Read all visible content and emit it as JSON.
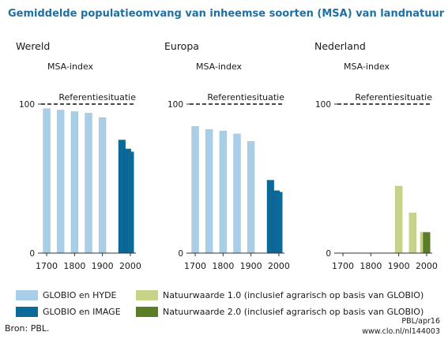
{
  "title": "Gemiddelde populatieomvang van inheemse soorten (MSA) van landnatuur",
  "colors": {
    "globio_hyde": "#a9cfe8",
    "globio_image": "#0b6a99",
    "natuurwaarde_1": "#c8d38a",
    "natuurwaarde_2": "#5b7d26"
  },
  "chart_data": [
    {
      "type": "bar",
      "panel_title": "Wereld",
      "ylabel": "MSA-index",
      "reference_label": "Referentiesituatie",
      "reference_value": 100,
      "ylim": [
        0,
        100
      ],
      "yticks": [
        0,
        100
      ],
      "xticks": [
        "1700",
        "1800",
        "1900",
        "2000"
      ],
      "series": [
        {
          "name": "GLOBIO en HYDE",
          "color_key": "globio_hyde",
          "x": [
            1700,
            1750,
            1800,
            1850,
            1900
          ],
          "values": [
            97,
            96,
            95,
            94,
            91
          ]
        },
        {
          "name": "GLOBIO en IMAGE",
          "color_key": "globio_image",
          "x": [
            1970,
            1990,
            2000
          ],
          "values": [
            76,
            70,
            68
          ]
        }
      ]
    },
    {
      "type": "bar",
      "panel_title": "Europa",
      "ylabel": "MSA-index",
      "reference_label": "Referentiesituatie",
      "reference_value": 100,
      "ylim": [
        0,
        100
      ],
      "yticks": [
        0,
        100
      ],
      "xticks": [
        "1700",
        "1800",
        "1900",
        "2000"
      ],
      "series": [
        {
          "name": "GLOBIO en HYDE",
          "color_key": "globio_hyde",
          "x": [
            1700,
            1750,
            1800,
            1850,
            1900
          ],
          "values": [
            85,
            83,
            82,
            80,
            75
          ]
        },
        {
          "name": "GLOBIO en IMAGE",
          "color_key": "globio_image",
          "x": [
            1970,
            1990,
            2000
          ],
          "values": [
            49,
            42,
            41
          ]
        }
      ]
    },
    {
      "type": "bar",
      "panel_title": "Nederland",
      "ylabel": "MSA-index",
      "reference_label": "Referentiesituatie",
      "reference_value": 100,
      "ylim": [
        0,
        100
      ],
      "yticks": [
        0,
        100
      ],
      "xticks": [
        "1700",
        "1800",
        "1900",
        "2000"
      ],
      "series": [
        {
          "name": "Natuurwaarde 1.0 (inclusief agrarisch op basis van GLOBIO)",
          "color_key": "natuurwaarde_1",
          "x": [
            1900,
            1950,
            1990
          ],
          "values": [
            45,
            27,
            14
          ]
        },
        {
          "name": "Natuurwaarde 2.0 (inclusief agrarisch op basis van GLOBIO)",
          "color_key": "natuurwaarde_2",
          "x": [
            2000
          ],
          "values": [
            14
          ]
        }
      ]
    }
  ],
  "legend": [
    {
      "label": "GLOBIO en HYDE",
      "color_key": "globio_hyde"
    },
    {
      "label": "GLOBIO en IMAGE",
      "color_key": "globio_image"
    },
    {
      "label": "Natuurwaarde 1.0 (inclusief agrarisch op basis van GLOBIO)",
      "color_key": "natuurwaarde_1"
    },
    {
      "label": "Natuurwaarde 2.0 (inclusief agrarisch op basis van GLOBIO)",
      "color_key": "natuurwaarde_2"
    }
  ],
  "source": "Bron: PBL.",
  "credit_line1": "PBL/apr16",
  "credit_line2": "www.clo.nl/nl144003"
}
